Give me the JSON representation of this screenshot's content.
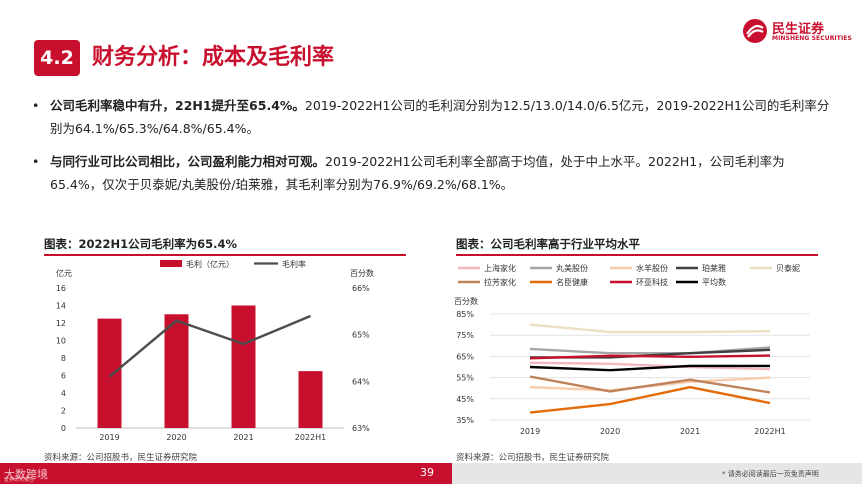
{
  "header": {
    "section_number": "4.2",
    "title": "财务分析：成本及毛利率"
  },
  "logo": {
    "cn": "民生证券",
    "en": "MINSHENG SECURITIES"
  },
  "bullets": [
    {
      "bold": "公司毛利率稳中有升，22H1提升至65.4%。",
      "text": "2019-2022H1公司的毛利润分别为12.5/13.0/14.0/6.5亿元，2019-2022H1公司的毛利率分别为64.1%/65.3%/64.8%/65.4%。"
    },
    {
      "bold": "与同行业可比公司相比，公司盈利能力相对可观。",
      "text": "2019-2022H1公司毛利率全部高于均值，处于中上水平。2022H1，公司毛利率为65.4%，仅次于贝泰妮/丸美股份/珀莱雅，其毛利率分别为76.9%/69.2%/68.1%。"
    }
  ],
  "chart_data": [
    {
      "type": "bar",
      "title": "图表：2022H1公司毛利率为65.4%",
      "categories": [
        "2019",
        "2020",
        "2021",
        "2022H1"
      ],
      "left_axis_unit": "亿元",
      "right_axis_unit": "百分数",
      "ylim": [
        0,
        16
      ],
      "yticks": [
        "0",
        "2",
        "4",
        "6",
        "8",
        "10",
        "12",
        "14",
        "16"
      ],
      "y2lim": [
        63,
        66
      ],
      "y2ticks": [
        "63%",
        "64%",
        "65%",
        "66%"
      ],
      "series": [
        {
          "name": "毛利（亿元）",
          "type": "bar",
          "axis": "left",
          "color": "#c8102e",
          "values": [
            12.5,
            13.0,
            14.0,
            6.5
          ]
        },
        {
          "name": "毛利率",
          "type": "line",
          "axis": "right",
          "color": "#4d4d4d",
          "values": [
            64.1,
            65.3,
            64.8,
            65.4
          ]
        }
      ],
      "source": "资料来源：公司招股书，民生证券研究院"
    },
    {
      "type": "line",
      "title": "图表：公司毛利率高于行业平均水平",
      "categories": [
        "2019",
        "2020",
        "2021",
        "2022H1"
      ],
      "y_axis_unit": "百分数",
      "ylim": [
        35,
        85
      ],
      "yticks": [
        "35%",
        "45%",
        "55%",
        "65%",
        "75%",
        "85%"
      ],
      "grid": true,
      "series": [
        {
          "name": "上海家化",
          "color": "#f2b8c0",
          "values": [
            62,
            61.5,
            60,
            59
          ]
        },
        {
          "name": "丸美股份",
          "color": "#a6a6a6",
          "values": [
            68.5,
            66.5,
            66.5,
            69.2
          ]
        },
        {
          "name": "水羊股份",
          "color": "#f8cba8",
          "values": [
            50.5,
            49,
            53,
            55
          ]
        },
        {
          "name": "珀莱雅",
          "color": "#404040",
          "values": [
            64.5,
            64.5,
            66.5,
            68.1
          ]
        },
        {
          "name": "贝泰妮",
          "color": "#ece0c4",
          "values": [
            80,
            76.5,
            76.5,
            76.9
          ]
        },
        {
          "name": "拉芳家化",
          "color": "#c0825a",
          "values": [
            55.5,
            48.5,
            54,
            48
          ]
        },
        {
          "name": "名臣健康",
          "color": "#e26b0a",
          "values": [
            38.5,
            42.5,
            50.5,
            43
          ]
        },
        {
          "name": "环亚科技",
          "color": "#c8102e",
          "values": [
            64.1,
            65.3,
            64.8,
            65.4
          ]
        },
        {
          "name": "平均数",
          "color": "#000000",
          "values": [
            60,
            58.5,
            60.5,
            60.5
          ]
        }
      ],
      "source": "资料来源：公司招股书，民生证券研究院"
    }
  ],
  "footer": {
    "page": "39",
    "note": "* 请务必阅读最后一页免责声明",
    "left_text": "大数跨境",
    "left_sub": "证券研究报告"
  }
}
